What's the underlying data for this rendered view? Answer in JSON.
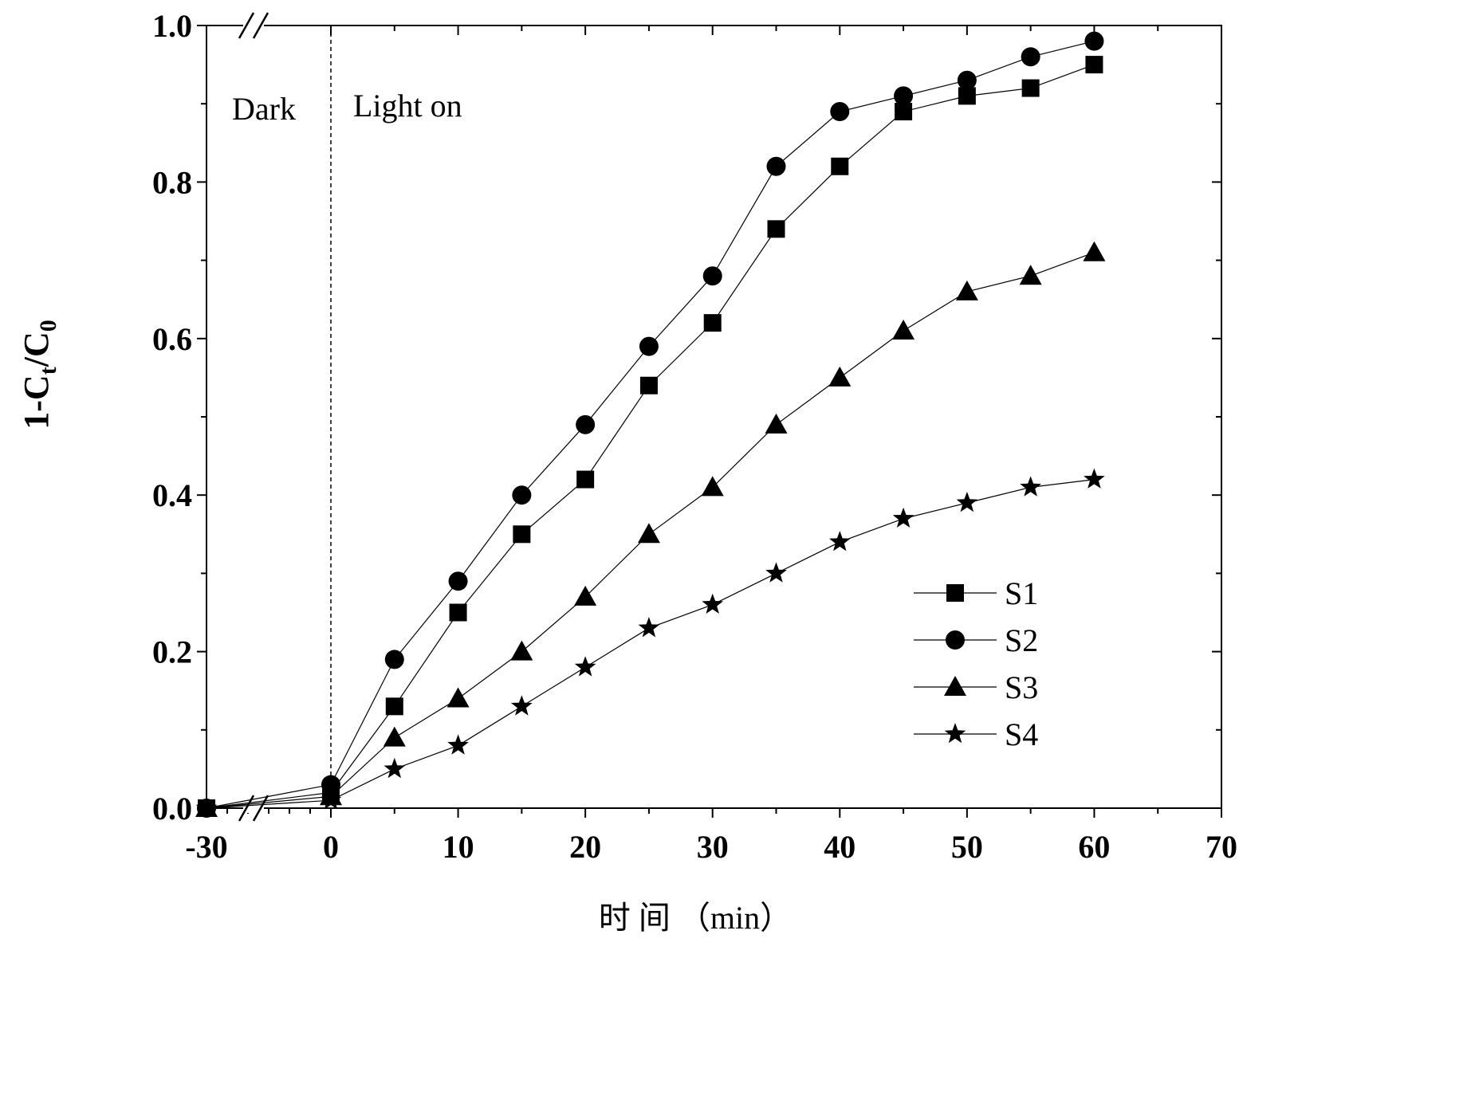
{
  "chart_data": {
    "type": "line",
    "xlabel": "时 间 （min）",
    "ylabel": "1-C",
    "ylabel_sub1": "t",
    "ylabel_mid": "/C",
    "ylabel_sub2": "0",
    "xlim": [
      -30,
      70
    ],
    "ylim": [
      0.0,
      1.0
    ],
    "x_ticks": [
      -30,
      0,
      10,
      20,
      30,
      40,
      50,
      60,
      70
    ],
    "x_tick_labels": [
      "-30",
      "0",
      "10",
      "20",
      "30",
      "40",
      "50",
      "60",
      "70"
    ],
    "y_ticks": [
      0.0,
      0.2,
      0.4,
      0.6,
      0.8,
      1.0
    ],
    "y_tick_labels": [
      "0.0",
      "0.2",
      "0.4",
      "0.6",
      "0.8",
      "1.0"
    ],
    "axis_break": "between -30 and 0",
    "annotations": {
      "dark": "Dark",
      "light": "Light on"
    },
    "light_on_x": 0,
    "legend_position": "lower-right",
    "grid": false,
    "series": [
      {
        "name": "S1",
        "marker": "square",
        "x": [
          -30,
          0,
          5,
          10,
          15,
          20,
          25,
          30,
          35,
          40,
          45,
          50,
          55,
          60
        ],
        "y": [
          0.0,
          0.02,
          0.13,
          0.25,
          0.35,
          0.42,
          0.54,
          0.62,
          0.74,
          0.82,
          0.89,
          0.91,
          0.92,
          0.95
        ]
      },
      {
        "name": "S2",
        "marker": "circle",
        "x": [
          -30,
          0,
          5,
          10,
          15,
          20,
          25,
          30,
          35,
          40,
          45,
          50,
          55,
          60
        ],
        "y": [
          0.0,
          0.03,
          0.19,
          0.29,
          0.4,
          0.49,
          0.59,
          0.68,
          0.82,
          0.89,
          0.91,
          0.93,
          0.96,
          0.98
        ]
      },
      {
        "name": "S3",
        "marker": "triangle",
        "x": [
          -30,
          0,
          5,
          10,
          15,
          20,
          25,
          30,
          35,
          40,
          45,
          50,
          55,
          60
        ],
        "y": [
          0.0,
          0.015,
          0.09,
          0.14,
          0.2,
          0.27,
          0.35,
          0.41,
          0.49,
          0.55,
          0.61,
          0.66,
          0.68,
          0.71
        ]
      },
      {
        "name": "S4",
        "marker": "star",
        "x": [
          -30,
          0,
          5,
          10,
          15,
          20,
          25,
          30,
          35,
          40,
          45,
          50,
          55,
          60
        ],
        "y": [
          0.0,
          0.01,
          0.05,
          0.08,
          0.13,
          0.18,
          0.23,
          0.26,
          0.3,
          0.34,
          0.37,
          0.39,
          0.41,
          0.42
        ]
      }
    ]
  }
}
